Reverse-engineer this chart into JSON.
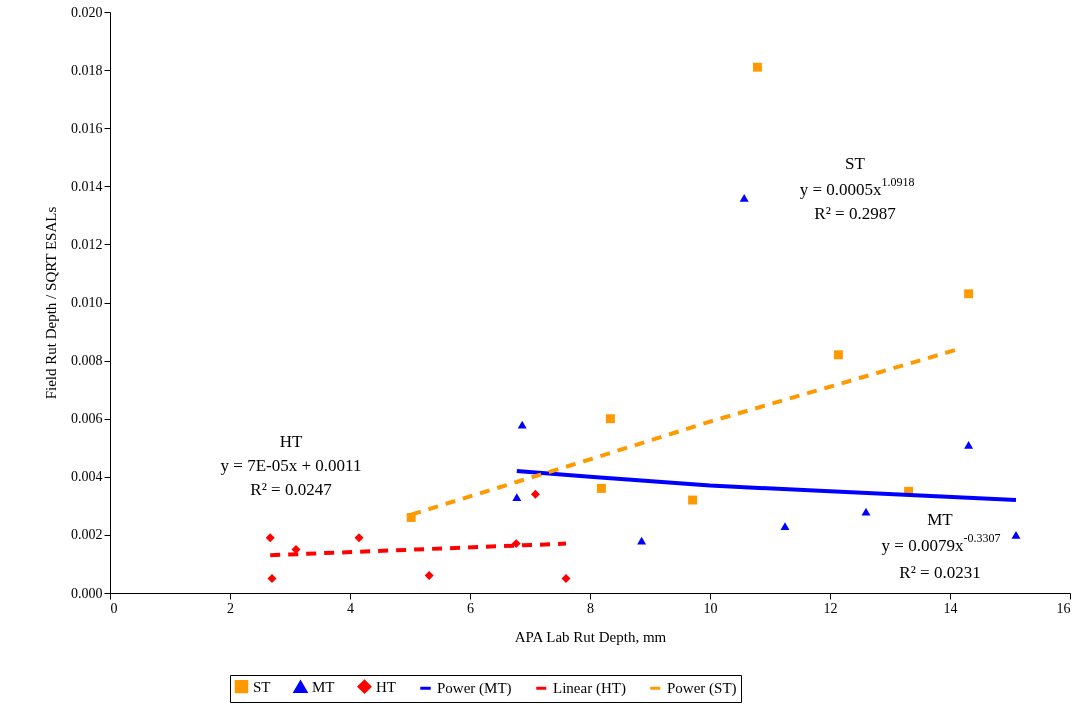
{
  "chart_data": {
    "type": "scatter",
    "xlabel": "APA Lab Rut Depth, mm",
    "ylabel": "Field Rut Depth / SQRT ESALs",
    "xlim": [
      0,
      16
    ],
    "xticks": [
      0,
      2,
      4,
      6,
      8,
      10,
      12,
      14,
      16
    ],
    "ylim": [
      0,
      0.02
    ],
    "yticks": [
      {
        "value": 0,
        "label": "0.000"
      },
      {
        "value": 0.002,
        "label": "0.002"
      },
      {
        "value": 0.004,
        "label": "0.004"
      },
      {
        "value": 0.006,
        "label": "0.006"
      },
      {
        "value": 0.008,
        "label": "0.008"
      },
      {
        "value": 0.01,
        "label": "0.010"
      },
      {
        "value": 0.012,
        "label": "0.012"
      },
      {
        "value": 0.014,
        "label": "0.014"
      },
      {
        "value": 0.016,
        "label": "0.016"
      },
      {
        "value": 0.018,
        "label": "0.018"
      },
      {
        "value": 0.02,
        "label": "0.020"
      }
    ],
    "grid": false,
    "legend": "bottom",
    "series": [
      {
        "name": "ST",
        "marker": "square",
        "color": "#ff9900",
        "x": [
          5.02,
          8.19,
          8.34,
          9.71,
          10.79,
          12.14,
          13.31,
          14.31
        ],
        "values": [
          0.0026,
          0.0036,
          0.006,
          0.0032,
          0.0181,
          0.0082,
          0.0035,
          0.0103
        ]
      },
      {
        "name": "MT",
        "marker": "triangle",
        "color": "#0000ff",
        "x": [
          6.78,
          6.87,
          8.86,
          10.57,
          11.25,
          12.6,
          14.31,
          15.1
        ],
        "values": [
          0.0033,
          0.0058,
          0.0018,
          0.0136,
          0.0023,
          0.0028,
          0.0051,
          0.002
        ]
      },
      {
        "name": "HT",
        "marker": "diamond",
        "color": "#ff0000",
        "x": [
          2.67,
          2.7,
          3.1,
          4.15,
          5.32,
          6.77,
          7.09,
          7.6
        ],
        "values": [
          0.0019,
          0.0005,
          0.0015,
          0.0019,
          0.0006,
          0.0017,
          0.0034,
          0.0005
        ]
      },
      {
        "name": "Power (MT)",
        "type": "line",
        "line_style": "solid",
        "color": "#0000ff",
        "x": [
          6.78,
          8,
          10,
          12,
          15.1
        ],
        "values": [
          0.0042,
          0.004,
          0.0037,
          0.0035,
          0.0032
        ]
      },
      {
        "name": "Linear (HT)",
        "type": "line",
        "line_style": "dashed",
        "color": "#ff0000",
        "x": [
          2.67,
          7.6
        ],
        "values": [
          0.0013,
          0.0017
        ]
      },
      {
        "name": "Power (ST)",
        "type": "line",
        "line_style": "dashed",
        "color": "#ff9900",
        "x": [
          5.02,
          8,
          10,
          12,
          14.15
        ],
        "values": [
          0.0027,
          0.0046,
          0.0059,
          0.0071,
          0.0084
        ]
      }
    ],
    "annotations": [
      "HT",
      "y = 7E-05x + 0.0011",
      "R² = 0.0247",
      "ST",
      "y = 0.0005x$^{1.0918}$",
      "R² = 0.2987",
      "MT",
      "y = 0.0079x$^{-0.3307}$",
      "R² = 0.0231"
    ]
  }
}
